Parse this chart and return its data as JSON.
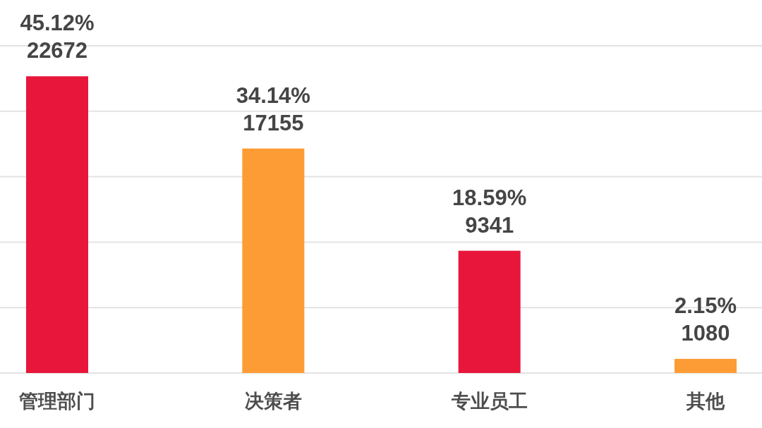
{
  "chart_data": {
    "type": "bar",
    "categories": [
      "管理部门",
      "决策者",
      "专业员工",
      "其他"
    ],
    "values": [
      22672,
      17155,
      9341,
      1080
    ],
    "colors": [
      "#e8163a",
      "#fd9c35",
      "#e8163a",
      "#fd9c35"
    ],
    "value_labels": [
      "45.12%\n22672",
      "34.14%\n17155",
      "18.59%\n9341",
      "2.15%\n1080"
    ],
    "ylim": [
      0,
      25000
    ],
    "yticks": [
      {
        "value": 0,
        "label": null
      },
      {
        "value": 5000,
        "label": null
      },
      {
        "value": 10000,
        "label": null
      },
      {
        "value": 15000,
        "label": null
      },
      {
        "value": 20000,
        "label": null
      },
      {
        "value": 25000,
        "label": null
      }
    ],
    "grid": "y",
    "tick_labels": "x"
  }
}
